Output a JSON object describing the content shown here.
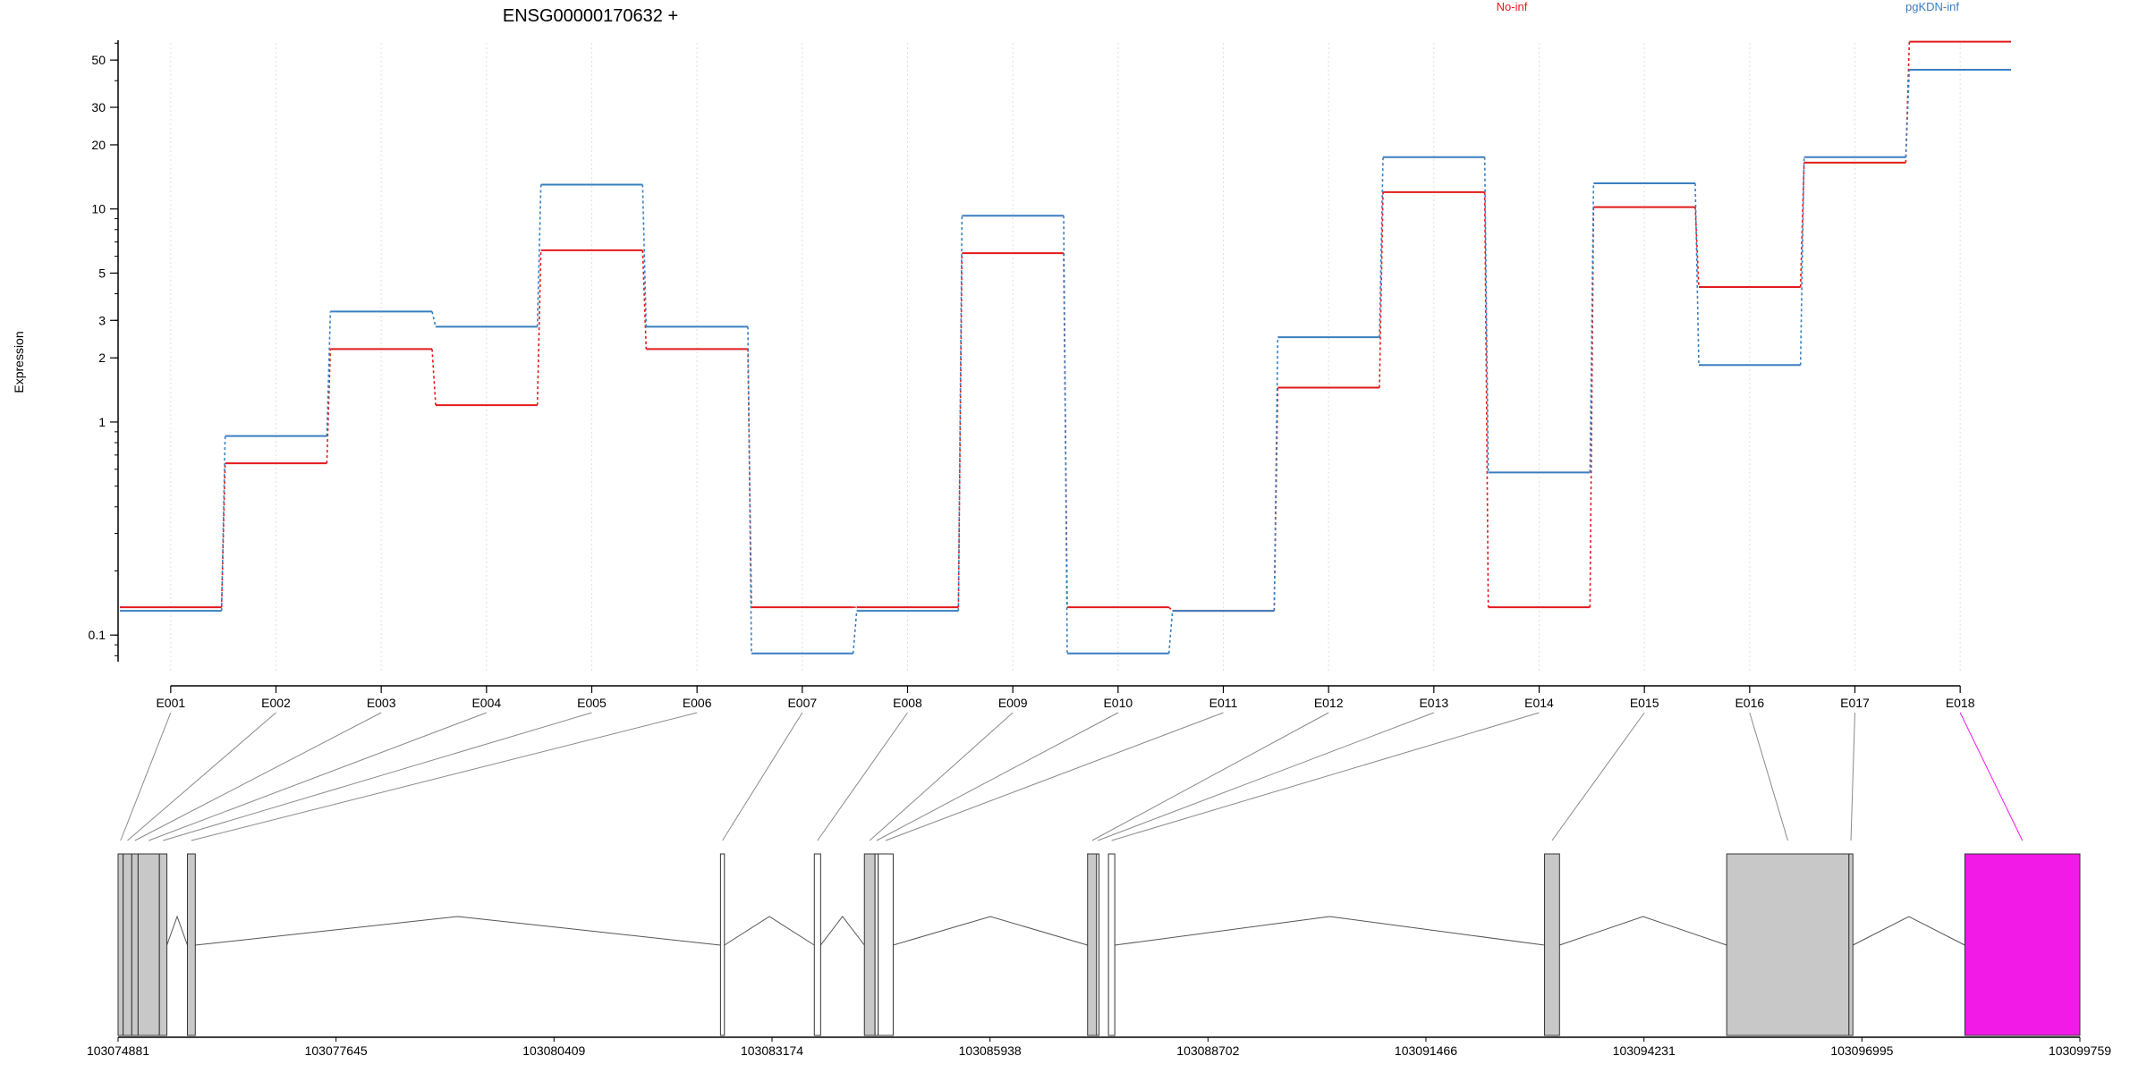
{
  "chart_data": {
    "type": "line",
    "title": "ENSG00000170632 +",
    "ylabel": "Expression",
    "y_scale": "log",
    "ylim": [
      0.075,
      65
    ],
    "y_ticks": [
      "0.1",
      "1",
      "2",
      "3",
      "5",
      "10",
      "20",
      "30",
      "50"
    ],
    "categories": [
      "E001",
      "E002",
      "E003",
      "E004",
      "E005",
      "E006",
      "E007",
      "E008",
      "E009",
      "E010",
      "E011",
      "E012",
      "E013",
      "E014",
      "E015",
      "E016",
      "E017",
      "E018"
    ],
    "series": [
      {
        "name": "No-inf",
        "color": "#e31a1c",
        "values": [
          0.135,
          0.64,
          2.2,
          1.2,
          6.4,
          2.2,
          0.135,
          0.135,
          6.2,
          0.135,
          0.13,
          1.45,
          12.0,
          0.135,
          10.2,
          4.3,
          16.5,
          61
        ]
      },
      {
        "name": "pgKDN-inf",
        "color": "#3a7fc1",
        "values": [
          0.13,
          0.86,
          3.3,
          2.8,
          13.0,
          2.8,
          0.082,
          0.13,
          9.3,
          0.082,
          0.13,
          2.5,
          17.5,
          0.58,
          13.2,
          1.85,
          17.5,
          45
        ]
      }
    ],
    "legend": "top",
    "grid": "vertical dotted",
    "highlighted_exon": "E018",
    "highlight_color": "#f21ae6",
    "gene_model": {
      "x_ticks": [
        "103074881",
        "103077645",
        "103080409",
        "103083174",
        "103085938",
        "103088702",
        "103091466",
        "103094231",
        "103096995",
        "103099759"
      ],
      "exons": [
        {
          "id": "E001",
          "start": 103074881,
          "end": 103074945,
          "fill": "#c8c8c8"
        },
        {
          "id": "E002",
          "start": 103074945,
          "end": 103075055,
          "fill": "#c8c8c8"
        },
        {
          "id": "E003",
          "start": 103075055,
          "end": 103075135,
          "fill": "#c8c8c8"
        },
        {
          "id": "E004",
          "start": 103075135,
          "end": 103075405,
          "fill": "#c8c8c8"
        },
        {
          "id": "E005",
          "start": 103075405,
          "end": 103075500,
          "fill": "#c8c8c8"
        },
        {
          "id": "E006",
          "start": 103075760,
          "end": 103075860,
          "fill": "#c8c8c8"
        },
        {
          "id": "E007",
          "start": 103082520,
          "end": 103082570,
          "fill": "#ffffff"
        },
        {
          "id": "E008",
          "start": 103083710,
          "end": 103083790,
          "fill": "#ffffff"
        },
        {
          "id": "E009",
          "start": 103084345,
          "end": 103084480,
          "fill": "#c8c8c8"
        },
        {
          "id": "E010",
          "start": 103084480,
          "end": 103084520,
          "fill": "#ffffff"
        },
        {
          "id": "E011",
          "start": 103084520,
          "end": 103084710,
          "fill": "#ffffff"
        },
        {
          "id": "E012",
          "start": 103087175,
          "end": 103087290,
          "fill": "#c8c8c8"
        },
        {
          "id": "E013",
          "start": 103087290,
          "end": 103087320,
          "fill": "#ffffff"
        },
        {
          "id": "E014",
          "start": 103087440,
          "end": 103087520,
          "fill": "#ffffff"
        },
        {
          "id": "E015",
          "start": 103092970,
          "end": 103093160,
          "fill": "#c8c8c8"
        },
        {
          "id": "E016",
          "start": 103095280,
          "end": 103096830,
          "fill": "#c8c8c8"
        },
        {
          "id": "E017",
          "start": 103096830,
          "end": 103096880,
          "fill": "#c8c8c8"
        },
        {
          "id": "E018",
          "start": 103098300,
          "end": 103099759,
          "fill": "#f21ae6"
        }
      ],
      "introns": [
        [
          103075500,
          103075760
        ],
        [
          103075860,
          103082520
        ],
        [
          103082570,
          103083710
        ],
        [
          103083790,
          103084345
        ],
        [
          103084710,
          103087175
        ],
        [
          103087520,
          103092970
        ],
        [
          103093160,
          103095280
        ],
        [
          103096880,
          103098300
        ]
      ]
    }
  }
}
